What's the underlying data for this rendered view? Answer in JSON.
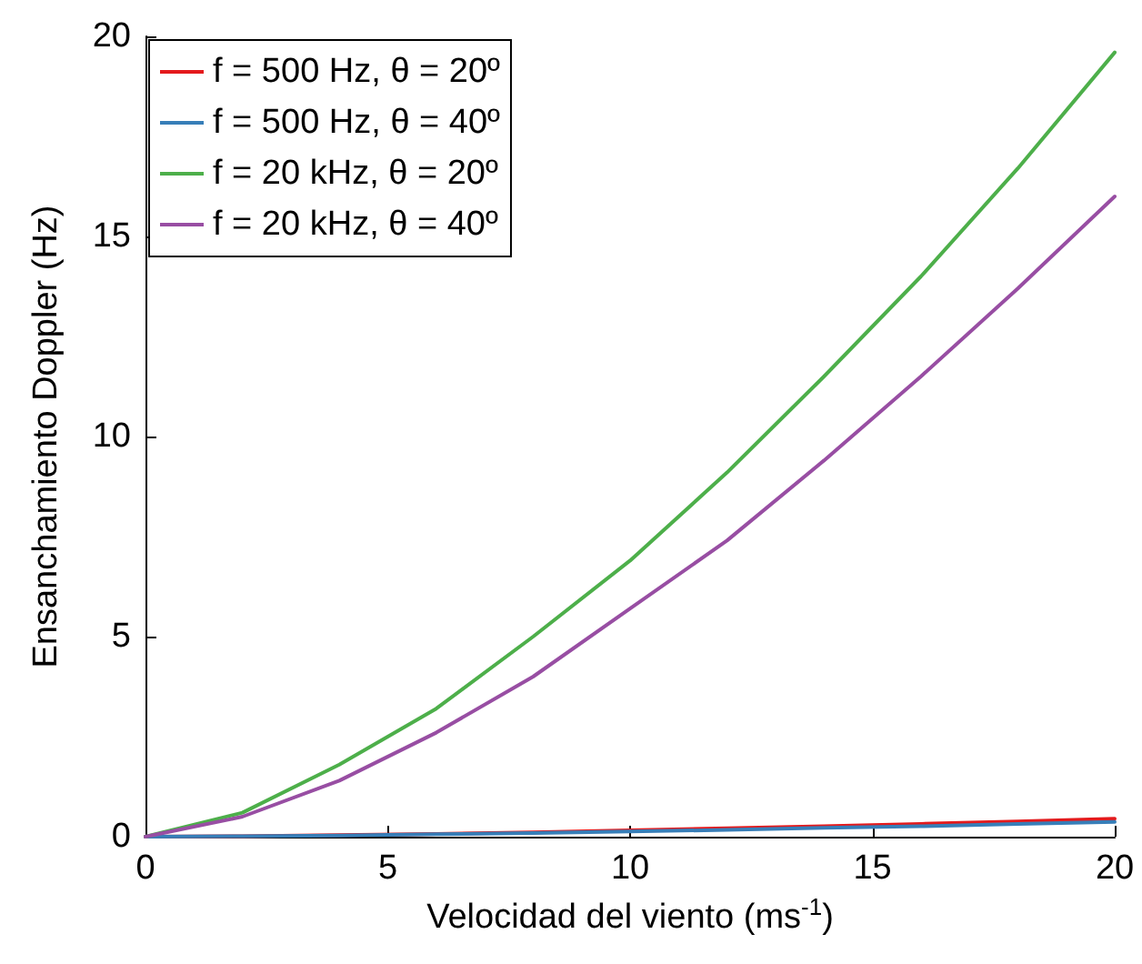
{
  "chart_data": {
    "type": "line",
    "xlabel": "Velocidad del viento (ms$^{-1}$)",
    "ylabel": "Ensanchamiento Doppler (Hz)",
    "x": [
      0,
      2,
      4,
      6,
      8,
      10,
      12,
      14,
      16,
      18,
      20
    ],
    "series": [
      {
        "name": "f = 500 Hz, θ = 20º",
        "color": "#e41a1c",
        "values": [
          0,
          0.01,
          0.04,
          0.07,
          0.11,
          0.16,
          0.21,
          0.26,
          0.32,
          0.38,
          0.45
        ]
      },
      {
        "name": "f = 500 Hz, θ = 40º",
        "color": "#377eb8",
        "values": [
          0,
          0.01,
          0.03,
          0.06,
          0.09,
          0.13,
          0.17,
          0.22,
          0.26,
          0.32,
          0.37
        ]
      },
      {
        "name": "f = 20 kHz, θ = 20º",
        "color": "#4daf4a",
        "values": [
          0,
          0.6,
          1.8,
          3.2,
          5.0,
          6.9,
          9.1,
          11.5,
          14.0,
          16.7,
          19.6
        ]
      },
      {
        "name": "f = 20 kHz, θ = 40º",
        "color": "#984ea3",
        "values": [
          0,
          0.5,
          1.4,
          2.6,
          4.0,
          5.7,
          7.4,
          9.4,
          11.5,
          13.7,
          16.0
        ]
      }
    ],
    "xlim": [
      0,
      20
    ],
    "xticks": [
      0,
      5,
      10,
      15,
      20
    ],
    "ylim": [
      0,
      20
    ],
    "yticks": [
      0,
      5,
      10,
      15,
      20
    ],
    "grid": false,
    "legend": "top left",
    "marker": "none",
    "line_style": "solid"
  }
}
